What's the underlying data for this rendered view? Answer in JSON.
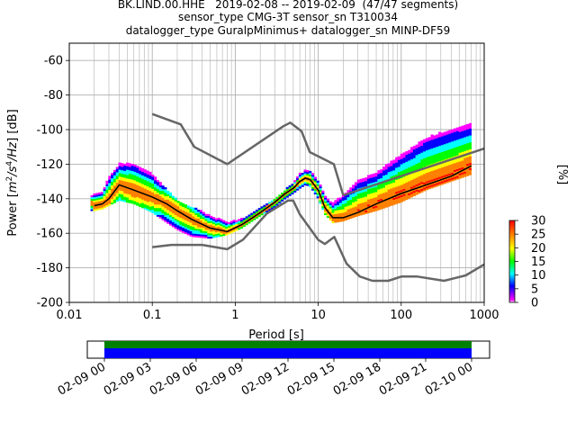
{
  "header": {
    "line1": "BK.LIND.00.HHE   2019-02-08 -- 2019-02-09  (47/47 segments)",
    "line2": "sensor_type CMG-3T sensor_sn T310034",
    "line3": "datalogger_type GuralpMinimus+ datalogger_sn MINP-DF59"
  },
  "colors": {
    "model_line": "#666666",
    "mode_line": "#000000",
    "grid": "#b0b0b0",
    "timeline_green": "#008000",
    "timeline_blue": "#0000ff"
  },
  "chart_data": [
    {
      "type": "heatmap",
      "title": "",
      "xlabel": "Period [s]",
      "ylabel": "Power [m^2/s^4/Hz] [dB]",
      "xscale": "log",
      "xlim": [
        0.01,
        1000
      ],
      "ylim": [
        -200,
        -50
      ],
      "xticks": [
        "0.01",
        "0.1",
        "1",
        "10",
        "100",
        "1000"
      ],
      "yticks": [
        "-60",
        "-80",
        "-100",
        "-120",
        "-140",
        "-160",
        "-180",
        "-200"
      ],
      "grid": true,
      "colorbar": {
        "label": "[%]",
        "range": [
          0,
          30
        ],
        "ticks": [
          "0",
          "5",
          "10",
          "15",
          "20",
          "25",
          "30"
        ],
        "colormap": [
          "#ffffff",
          "#ff00ff",
          "#0000ff",
          "#00ffff",
          "#00ff00",
          "#ffff00",
          "#ff8000",
          "#ff0000"
        ]
      },
      "series": [
        {
          "name": "",
          "kind": "high-noise-model",
          "x": [
            0.1,
            0.22,
            0.32,
            0.8,
            3.8,
            4.6,
            6.3,
            7.9,
            15.4,
            20
          ],
          "y": [
            -91,
            -97,
            -110,
            -120,
            -98,
            -96,
            -101,
            -113,
            -120,
            -138
          ]
        },
        {
          "name": "",
          "kind": "high-noise-model-long",
          "x": [
            20,
            1000
          ],
          "y": [
            -138,
            -111
          ]
        },
        {
          "name": "",
          "kind": "low-noise-model",
          "x": [
            0.1,
            0.17,
            0.4,
            0.8,
            1.24,
            2.4,
            4.3,
            5,
            6,
            10,
            12,
            15.6,
            21.9,
            31.6,
            45,
            70,
            101,
            154,
            328,
            600,
            1000
          ],
          "y": [
            -168,
            -166.7,
            -166.7,
            -169.2,
            -163.7,
            -148.6,
            -141.1,
            -141.1,
            -149,
            -163.8,
            -166.2,
            -162.1,
            -177.5,
            -185,
            -187.5,
            -187.5,
            -185,
            -185,
            -187.5,
            -184.4,
            -178
          ]
        },
        {
          "name": "",
          "kind": "mode",
          "x": [
            0.02,
            0.025,
            0.03,
            0.04,
            0.06,
            0.1,
            0.15,
            0.2,
            0.3,
            0.5,
            0.8,
            1.2,
            2,
            3,
            4,
            5,
            6,
            7,
            8,
            10,
            12,
            15,
            20,
            30,
            50,
            100,
            200,
            400,
            700
          ],
          "y": [
            -144,
            -143,
            -140,
            -132,
            -135,
            -139,
            -143,
            -147,
            -152,
            -157,
            -159,
            -155,
            -148,
            -142,
            -137,
            -134,
            -130,
            -128,
            -129,
            -135,
            -145,
            -151,
            -151,
            -148,
            -143,
            -137,
            -132,
            -127,
            -121
          ]
        }
      ],
      "heatmap_band": {
        "x": [
          0.018,
          0.02,
          0.025,
          0.03,
          0.04,
          0.06,
          0.1,
          0.15,
          0.2,
          0.3,
          0.5,
          0.8,
          1.2,
          2,
          3,
          4,
          5,
          6,
          7,
          8,
          10,
          12,
          15,
          20,
          30,
          50,
          100,
          200,
          400,
          700
        ],
        "upper": [
          -139,
          -137,
          -136,
          -128,
          -120,
          -120,
          -126,
          -135,
          -141,
          -145,
          -150,
          -154,
          -152,
          -145,
          -140,
          -135,
          -131,
          -126,
          -124,
          -124,
          -130,
          -138,
          -143,
          -138,
          -130,
          -125,
          -115,
          -105,
          -100,
          -97
        ],
        "lower": [
          -147,
          -147,
          -146,
          -144,
          -141,
          -143,
          -148,
          -154,
          -158,
          -162,
          -163,
          -161,
          -157,
          -150,
          -145,
          -140,
          -137,
          -134,
          -132,
          -133,
          -140,
          -149,
          -154,
          -153,
          -150,
          -147,
          -142,
          -135,
          -130,
          -126
        ]
      }
    },
    {
      "type": "timeline",
      "xticks": [
        "02-09 00",
        "02-09 03",
        "02-09 06",
        "02-09 09",
        "02-09 12",
        "02-09 15",
        "02-09 18",
        "02-09 21",
        "02-10 00"
      ],
      "coverage": {
        "start_hours": 0,
        "end_hours": 24
      }
    }
  ]
}
